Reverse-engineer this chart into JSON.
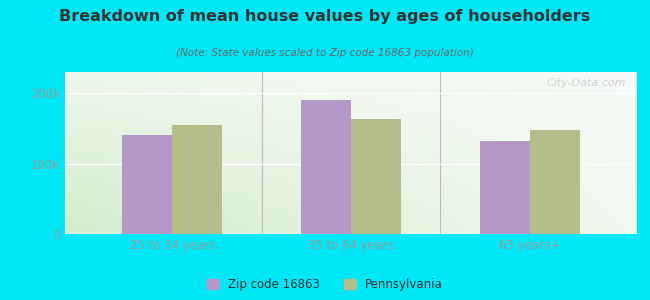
{
  "title": "Breakdown of mean house values by ages of householders",
  "subtitle": "(Note: State values scaled to Zip code 16863 population)",
  "categories": [
    "25 to 34 years",
    "35 to 64 years",
    "65 years+"
  ],
  "zip_values": [
    140000,
    190000,
    132000
  ],
  "state_values": [
    155000,
    163000,
    148000
  ],
  "zip_color": "#b398c8",
  "state_color": "#b5be8a",
  "background_outer": "#00e8f8",
  "background_chart_green": "#d4edcc",
  "background_chart_white": "#f8fbf8",
  "ylim": [
    0,
    230000
  ],
  "ytick_labels": [
    "0",
    "100k",
    "200k"
  ],
  "ytick_values": [
    0,
    100000,
    200000
  ],
  "legend_zip_label": "Zip code 16863",
  "legend_state_label": "Pennsylvania",
  "bar_width": 0.28,
  "watermark": "City-Data.com",
  "title_color": "#333333",
  "subtitle_color": "#666666",
  "tick_color": "#999999",
  "divider_color": "#bbbbbb",
  "grid_color": "#ffffff"
}
